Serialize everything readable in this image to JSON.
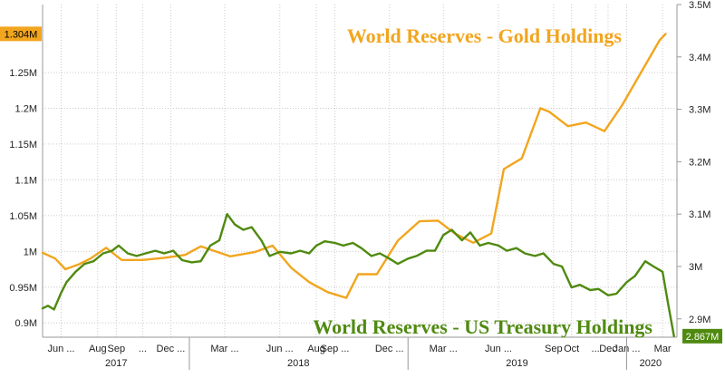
{
  "colors": {
    "gold": "#f2a51e",
    "treasury": "#4f8a10",
    "grid": "#cccccc",
    "axis": "#999999",
    "treasury_badge_text": "#ffffff",
    "gold_badge_text": "#000000"
  },
  "chart_data": {
    "type": "line",
    "grid": true,
    "annotations": [
      {
        "series": "gold",
        "text": "World Reserves - Gold Holdings"
      },
      {
        "series": "treasury",
        "text": "World Reserves - US Treasury Holdings"
      }
    ],
    "x_axis": {
      "range": [
        "2017-05-01",
        "2020-03-25"
      ],
      "month_ticks": [
        {
          "label": "Jun ...",
          "date": "2017-06-01"
        },
        {
          "label": "Aug",
          "date": "2017-08-01"
        },
        {
          "label": "Sep",
          "date": "2017-09-01"
        },
        {
          "label": "...",
          "date": "2017-10-15"
        },
        {
          "label": "Dec ...",
          "date": "2017-12-01"
        },
        {
          "label": "Mar ...",
          "date": "2018-03-01"
        },
        {
          "label": "Jun ...",
          "date": "2018-06-01"
        },
        {
          "label": "Aug",
          "date": "2018-08-01"
        },
        {
          "label": "Sep ...",
          "date": "2018-09-01"
        },
        {
          "label": "Dec ...",
          "date": "2018-12-01"
        },
        {
          "label": "Mar ...",
          "date": "2019-03-01"
        },
        {
          "label": "Jun ...",
          "date": "2019-06-01"
        },
        {
          "label": "Sep",
          "date": "2019-09-01"
        },
        {
          "label": "Oct",
          "date": "2019-10-01"
        },
        {
          "label": "...",
          "date": "2019-11-10"
        },
        {
          "label": "Dec",
          "date": "2019-12-01"
        },
        {
          "label": "Jan ...",
          "date": "2020-01-01"
        },
        {
          "label": "Mar",
          "date": "2020-03-01"
        }
      ],
      "years": [
        {
          "label": "2017",
          "date": "2017-09-01"
        },
        {
          "label": "2018",
          "date": "2018-07-02"
        },
        {
          "label": "2019",
          "date": "2019-07-02"
        },
        {
          "label": "2020",
          "date": "2020-02-10"
        }
      ],
      "year_dividers": [
        "2018-01-01",
        "2019-01-01",
        "2020-01-01"
      ]
    },
    "left_axis": {
      "range": [
        0.88,
        1.345
      ],
      "ticks": [
        {
          "value": 0.9,
          "label": "0.9M"
        },
        {
          "value": 0.95,
          "label": "0.95M"
        },
        {
          "value": 1.0,
          "label": "1M"
        },
        {
          "value": 1.05,
          "label": "1.05M"
        },
        {
          "value": 1.1,
          "label": "1.1M"
        },
        {
          "value": 1.15,
          "label": "1.15M"
        },
        {
          "value": 1.2,
          "label": "1.2M"
        },
        {
          "value": 1.25,
          "label": "1.25M"
        }
      ]
    },
    "right_axis": {
      "range": [
        2.865,
        3.5
      ],
      "ticks": [
        {
          "value": 2.9,
          "label": "2.9M"
        },
        {
          "value": 3.0,
          "label": "3M"
        },
        {
          "value": 3.1,
          "label": "3.1M"
        },
        {
          "value": 3.2,
          "label": "3.2M"
        },
        {
          "value": 3.3,
          "label": "3.3M"
        },
        {
          "value": 3.4,
          "label": "3.4M"
        },
        {
          "value": 3.5,
          "label": "3.5M"
        }
      ]
    },
    "series": [
      {
        "key": "gold",
        "axis": "left",
        "last_value_label": "1.304M",
        "points": [
          [
            "2017-05-01",
            0.998
          ],
          [
            "2017-05-22",
            0.99
          ],
          [
            "2017-06-08",
            0.975
          ],
          [
            "2017-07-01",
            0.982
          ],
          [
            "2017-07-20",
            0.99
          ],
          [
            "2017-08-15",
            1.005
          ],
          [
            "2017-09-10",
            0.988
          ],
          [
            "2017-10-15",
            0.988
          ],
          [
            "2017-11-20",
            0.991
          ],
          [
            "2017-12-25",
            0.995
          ],
          [
            "2018-01-20",
            1.007
          ],
          [
            "2018-03-10",
            0.993
          ],
          [
            "2018-04-20",
            0.999
          ],
          [
            "2018-05-20",
            1.008
          ],
          [
            "2018-06-20",
            0.977
          ],
          [
            "2018-07-20",
            0.957
          ],
          [
            "2018-08-20",
            0.943
          ],
          [
            "2018-09-20",
            0.935
          ],
          [
            "2018-10-10",
            0.968
          ],
          [
            "2018-11-10",
            0.968
          ],
          [
            "2018-12-15",
            1.015
          ],
          [
            "2019-01-20",
            1.042
          ],
          [
            "2019-02-20",
            1.043
          ],
          [
            "2019-03-20",
            1.025
          ],
          [
            "2019-04-20",
            1.012
          ],
          [
            "2019-05-20",
            1.025
          ],
          [
            "2019-06-10",
            1.115
          ],
          [
            "2019-07-10",
            1.13
          ],
          [
            "2019-08-10",
            1.2
          ],
          [
            "2019-08-25",
            1.195
          ],
          [
            "2019-09-25",
            1.175
          ],
          [
            "2019-10-25",
            1.18
          ],
          [
            "2019-11-25",
            1.168
          ],
          [
            "2019-12-25",
            1.205
          ],
          [
            "2020-01-25",
            1.25
          ],
          [
            "2020-02-25",
            1.295
          ],
          [
            "2020-03-06",
            1.304
          ]
        ]
      },
      {
        "key": "treasury",
        "axis": "right",
        "last_value_label": "2.867M",
        "points": [
          [
            "2017-05-01",
            2.92
          ],
          [
            "2017-05-10",
            2.925
          ],
          [
            "2017-05-20",
            2.918
          ],
          [
            "2017-06-01",
            2.95
          ],
          [
            "2017-06-10",
            2.97
          ],
          [
            "2017-06-25",
            2.99
          ],
          [
            "2017-07-10",
            3.005
          ],
          [
            "2017-07-25",
            3.01
          ],
          [
            "2017-08-10",
            3.025
          ],
          [
            "2017-08-25",
            3.03
          ],
          [
            "2017-09-05",
            3.04
          ],
          [
            "2017-09-20",
            3.025
          ],
          [
            "2017-10-05",
            3.02
          ],
          [
            "2017-10-20",
            3.025
          ],
          [
            "2017-11-05",
            3.03
          ],
          [
            "2017-11-20",
            3.025
          ],
          [
            "2017-12-05",
            3.03
          ],
          [
            "2017-12-20",
            3.012
          ],
          [
            "2018-01-05",
            3.008
          ],
          [
            "2018-01-20",
            3.01
          ],
          [
            "2018-02-05",
            3.04
          ],
          [
            "2018-02-20",
            3.05
          ],
          [
            "2018-03-05",
            3.1
          ],
          [
            "2018-03-18",
            3.08
          ],
          [
            "2018-04-01",
            3.07
          ],
          [
            "2018-04-15",
            3.075
          ],
          [
            "2018-05-01",
            3.05
          ],
          [
            "2018-05-15",
            3.02
          ],
          [
            "2018-06-01",
            3.028
          ],
          [
            "2018-06-20",
            3.025
          ],
          [
            "2018-07-05",
            3.03
          ],
          [
            "2018-07-20",
            3.025
          ],
          [
            "2018-08-01",
            3.04
          ],
          [
            "2018-08-15",
            3.048
          ],
          [
            "2018-09-01",
            3.045
          ],
          [
            "2018-09-15",
            3.04
          ],
          [
            "2018-10-01",
            3.045
          ],
          [
            "2018-10-15",
            3.035
          ],
          [
            "2018-11-01",
            3.02
          ],
          [
            "2018-11-15",
            3.025
          ],
          [
            "2018-12-01",
            3.015
          ],
          [
            "2018-12-15",
            3.005
          ],
          [
            "2019-01-01",
            3.015
          ],
          [
            "2019-01-15",
            3.02
          ],
          [
            "2019-02-01",
            3.03
          ],
          [
            "2019-02-15",
            3.03
          ],
          [
            "2019-03-01",
            3.06
          ],
          [
            "2019-03-15",
            3.07
          ],
          [
            "2019-04-01",
            3.05
          ],
          [
            "2019-04-15",
            3.065
          ],
          [
            "2019-05-01",
            3.04
          ],
          [
            "2019-05-15",
            3.045
          ],
          [
            "2019-06-01",
            3.04
          ],
          [
            "2019-06-15",
            3.03
          ],
          [
            "2019-07-01",
            3.035
          ],
          [
            "2019-07-15",
            3.025
          ],
          [
            "2019-08-01",
            3.02
          ],
          [
            "2019-08-15",
            3.025
          ],
          [
            "2019-09-01",
            3.005
          ],
          [
            "2019-09-15",
            3.0
          ],
          [
            "2019-10-01",
            2.96
          ],
          [
            "2019-10-15",
            2.965
          ],
          [
            "2019-11-01",
            2.955
          ],
          [
            "2019-11-15",
            2.957
          ],
          [
            "2019-12-01",
            2.945
          ],
          [
            "2019-12-15",
            2.948
          ],
          [
            "2020-01-01",
            2.97
          ],
          [
            "2020-01-15",
            2.982
          ],
          [
            "2020-02-01",
            3.01
          ],
          [
            "2020-02-15",
            3.0
          ],
          [
            "2020-03-01",
            2.99
          ],
          [
            "2020-03-10",
            2.93
          ],
          [
            "2020-03-20",
            2.867
          ]
        ]
      }
    ]
  }
}
